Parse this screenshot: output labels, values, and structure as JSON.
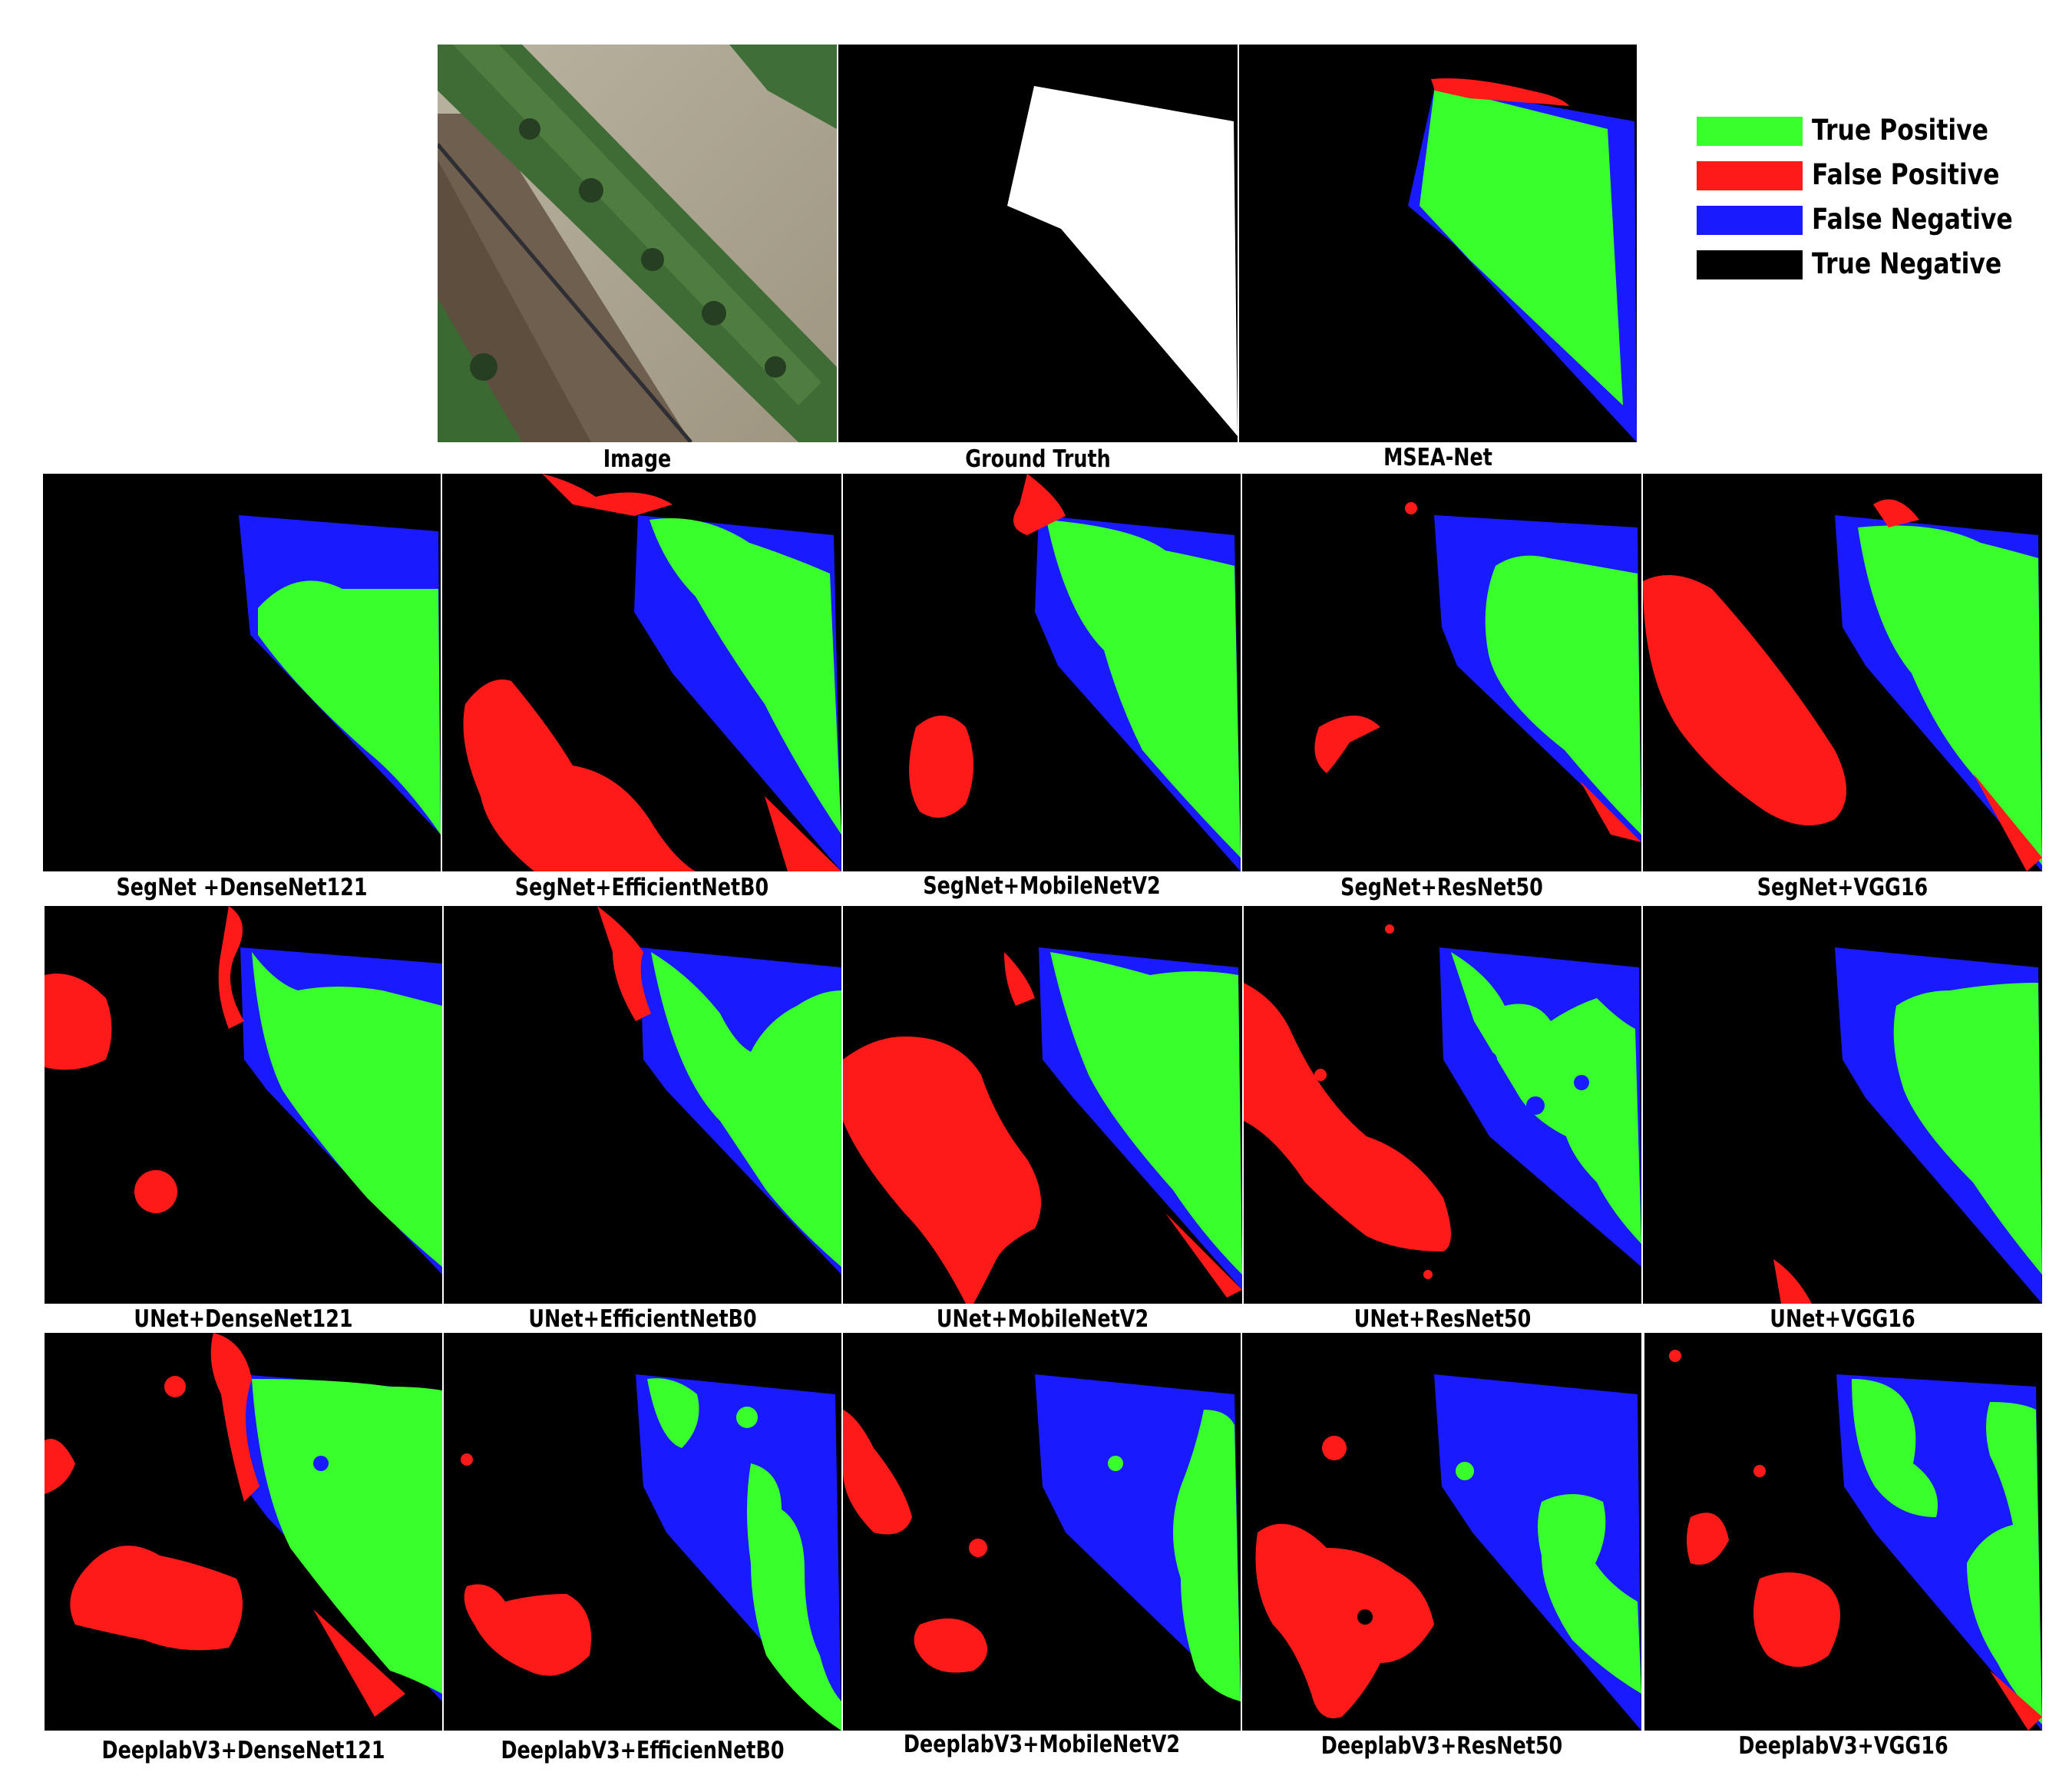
{
  "legend": [
    {
      "label": "True Positive",
      "color": "#39ff2c"
    },
    {
      "label": "False Positive",
      "color": "#ff1a1a"
    },
    {
      "label": "False Negative",
      "color": "#1a1aff"
    },
    {
      "label": "True Negative",
      "color": "#000000"
    }
  ],
  "top_row": {
    "image_caption": "Image",
    "ground_truth_caption": "Ground Truth",
    "msea_caption": "MSEA-Net"
  },
  "rows": [
    {
      "captions": [
        "SegNet +DenseNet121",
        "SegNet+EfficientNetB0",
        "SegNet+MobileNetV2",
        "SegNet+ResNet50",
        "SegNet+VGG16"
      ]
    },
    {
      "captions": [
        "UNet+DenseNet121",
        "UNet+EfficientNetB0",
        "UNet+MobileNetV2",
        "UNet+ResNet50",
        "UNet+VGG16"
      ]
    },
    {
      "captions": [
        "DeeplabV3+DenseNet121",
        "DeeplabV3+EfficienNetB0",
        "DeeplabV3+MobileNetV2",
        "DeeplabV3+ResNet50",
        "DeeplabV3+VGG16"
      ]
    }
  ]
}
